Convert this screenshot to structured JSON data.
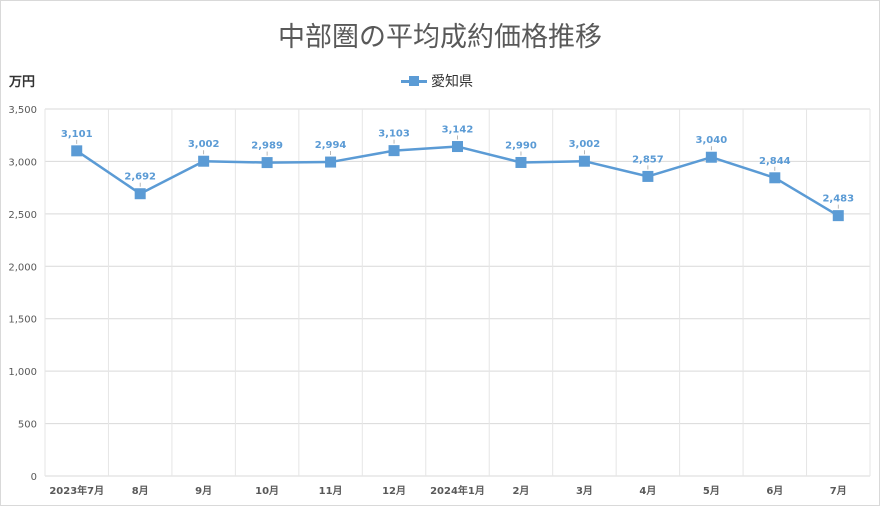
{
  "chart_data": {
    "type": "line",
    "title": "中部圏の平均成約価格推移",
    "ylabel": "万円",
    "xlabel": "",
    "categories": [
      "2023年7月",
      "8月",
      "9月",
      "10月",
      "11月",
      "12月",
      "2024年1月",
      "2月",
      "3月",
      "4月",
      "5月",
      "6月",
      "7月"
    ],
    "series": [
      {
        "name": "愛知県",
        "color": "#5b9bd5",
        "values": [
          3101,
          2692,
          3002,
          2989,
          2994,
          3103,
          3142,
          2990,
          3002,
          2857,
          3040,
          2844,
          2483
        ],
        "labels": [
          "3,101",
          "2,692",
          "3,002",
          "2,989",
          "2,994",
          "3,103",
          "3,142",
          "2,990",
          "3,002",
          "2,857",
          "3,040",
          "2,844",
          "2,483"
        ]
      }
    ],
    "ylim": [
      0,
      3500
    ],
    "yticks": [
      0,
      500,
      1000,
      1500,
      2000,
      2500,
      3000,
      3500
    ],
    "ytick_labels": [
      "0",
      "500",
      "1,000",
      "1,500",
      "2,000",
      "2,500",
      "3,000",
      "3,500"
    ],
    "grid": true,
    "legend_position": "top-center"
  }
}
